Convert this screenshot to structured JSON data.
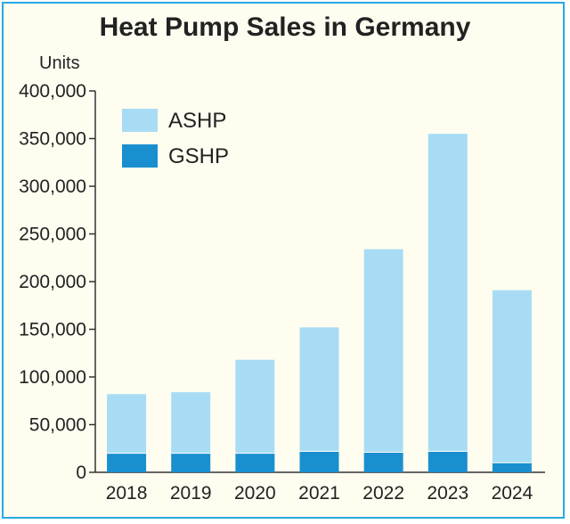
{
  "title": "Heat Pump Sales in Germany",
  "units_label": "Units",
  "colors": {
    "ASHP": "#a8dcf5",
    "GSHP": "#1a8fd0",
    "border": "#29a9e1",
    "background": "#fffdf0"
  },
  "chart_data": {
    "type": "bar",
    "stacked": true,
    "title": "Heat Pump Sales in Germany",
    "ylabel": "Units",
    "xlabel": "",
    "categories": [
      "2018",
      "2019",
      "2020",
      "2021",
      "2022",
      "2023",
      "2024"
    ],
    "series": [
      {
        "name": "ASHP",
        "values": [
          62000,
          64000,
          98000,
          130000,
          213000,
          333000,
          181000
        ]
      },
      {
        "name": "GSHP",
        "values": [
          20000,
          20000,
          20000,
          22000,
          21000,
          22000,
          10000
        ]
      }
    ],
    "ylim": [
      0,
      400000
    ],
    "yticks": [
      "0",
      "50,000",
      "100,000",
      "150,000",
      "200,000",
      "250,000",
      "300,000",
      "350,000",
      "400,000"
    ],
    "legend_position": "top-left",
    "grid": false
  }
}
